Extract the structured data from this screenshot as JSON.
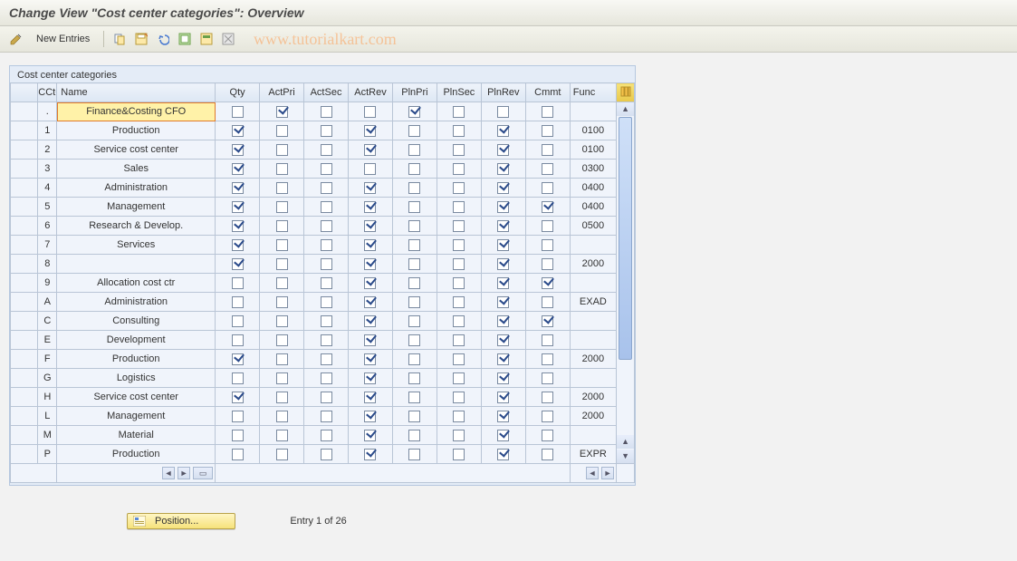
{
  "title": "Change View \"Cost center categories\": Overview",
  "watermark": "www.tutorialkart.com",
  "toolbar": {
    "new_entries_label": "New Entries",
    "icons": [
      "edit-icon",
      "copy-icon",
      "save-icon",
      "undo-icon",
      "select-all-icon",
      "select-block-icon",
      "deselect-icon"
    ]
  },
  "group": {
    "title": "Cost center categories"
  },
  "columns": [
    "CCtC",
    "Name",
    "Qty",
    "ActPri",
    "ActSec",
    "ActRev",
    "PlnPri",
    "PlnSec",
    "PlnRev",
    "Cmmt",
    "Func"
  ],
  "rows": [
    {
      "cc": ".",
      "name": "Finance&Costing CFO",
      "qty": false,
      "actpri": true,
      "actsec": false,
      "actrev": false,
      "plnpri": true,
      "plnsec": false,
      "plnrev": false,
      "cmmt": false,
      "func": "",
      "focus": true
    },
    {
      "cc": "1",
      "name": "Production",
      "qty": true,
      "actpri": false,
      "actsec": false,
      "actrev": true,
      "plnpri": false,
      "plnsec": false,
      "plnrev": true,
      "cmmt": false,
      "func": "0100"
    },
    {
      "cc": "2",
      "name": "Service cost center",
      "qty": true,
      "actpri": false,
      "actsec": false,
      "actrev": true,
      "plnpri": false,
      "plnsec": false,
      "plnrev": true,
      "cmmt": false,
      "func": "0100"
    },
    {
      "cc": "3",
      "name": "Sales",
      "qty": true,
      "actpri": false,
      "actsec": false,
      "actrev": false,
      "plnpri": false,
      "plnsec": false,
      "plnrev": true,
      "cmmt": false,
      "func": "0300"
    },
    {
      "cc": "4",
      "name": "Administration",
      "qty": true,
      "actpri": false,
      "actsec": false,
      "actrev": true,
      "plnpri": false,
      "plnsec": false,
      "plnrev": true,
      "cmmt": false,
      "func": "0400"
    },
    {
      "cc": "5",
      "name": "Management",
      "qty": true,
      "actpri": false,
      "actsec": false,
      "actrev": true,
      "plnpri": false,
      "plnsec": false,
      "plnrev": true,
      "cmmt": true,
      "func": "0400"
    },
    {
      "cc": "6",
      "name": "Research & Develop.",
      "qty": true,
      "actpri": false,
      "actsec": false,
      "actrev": true,
      "plnpri": false,
      "plnsec": false,
      "plnrev": true,
      "cmmt": false,
      "func": "0500"
    },
    {
      "cc": "7",
      "name": "Services",
      "qty": true,
      "actpri": false,
      "actsec": false,
      "actrev": true,
      "plnpri": false,
      "plnsec": false,
      "plnrev": true,
      "cmmt": false,
      "func": ""
    },
    {
      "cc": "8",
      "name": "",
      "qty": true,
      "actpri": false,
      "actsec": false,
      "actrev": true,
      "plnpri": false,
      "plnsec": false,
      "plnrev": true,
      "cmmt": false,
      "func": "2000"
    },
    {
      "cc": "9",
      "name": "Allocation cost ctr",
      "qty": false,
      "actpri": false,
      "actsec": false,
      "actrev": true,
      "plnpri": false,
      "plnsec": false,
      "plnrev": true,
      "cmmt": true,
      "func": ""
    },
    {
      "cc": "A",
      "name": "Administration",
      "qty": false,
      "actpri": false,
      "actsec": false,
      "actrev": true,
      "plnpri": false,
      "plnsec": false,
      "plnrev": true,
      "cmmt": false,
      "func": "EXAD"
    },
    {
      "cc": "C",
      "name": "Consulting",
      "qty": false,
      "actpri": false,
      "actsec": false,
      "actrev": true,
      "plnpri": false,
      "plnsec": false,
      "plnrev": true,
      "cmmt": true,
      "func": ""
    },
    {
      "cc": "E",
      "name": "Development",
      "qty": false,
      "actpri": false,
      "actsec": false,
      "actrev": true,
      "plnpri": false,
      "plnsec": false,
      "plnrev": true,
      "cmmt": false,
      "func": ""
    },
    {
      "cc": "F",
      "name": "Production",
      "qty": true,
      "actpri": false,
      "actsec": false,
      "actrev": true,
      "plnpri": false,
      "plnsec": false,
      "plnrev": true,
      "cmmt": false,
      "func": "2000"
    },
    {
      "cc": "G",
      "name": "Logistics",
      "qty": false,
      "actpri": false,
      "actsec": false,
      "actrev": true,
      "plnpri": false,
      "plnsec": false,
      "plnrev": true,
      "cmmt": false,
      "func": ""
    },
    {
      "cc": "H",
      "name": "Service cost center",
      "qty": true,
      "actpri": false,
      "actsec": false,
      "actrev": true,
      "plnpri": false,
      "plnsec": false,
      "plnrev": true,
      "cmmt": false,
      "func": "2000"
    },
    {
      "cc": "L",
      "name": "Management",
      "qty": false,
      "actpri": false,
      "actsec": false,
      "actrev": true,
      "plnpri": false,
      "plnsec": false,
      "plnrev": true,
      "cmmt": false,
      "func": "2000"
    },
    {
      "cc": "M",
      "name": "Material",
      "qty": false,
      "actpri": false,
      "actsec": false,
      "actrev": true,
      "plnpri": false,
      "plnsec": false,
      "plnrev": true,
      "cmmt": false,
      "func": ""
    },
    {
      "cc": "P",
      "name": "Production",
      "qty": false,
      "actpri": false,
      "actsec": false,
      "actrev": true,
      "plnpri": false,
      "plnsec": false,
      "plnrev": true,
      "cmmt": false,
      "func": "EXPR"
    }
  ],
  "footer": {
    "position_label": "Position...",
    "entry_text": "Entry 1 of 26"
  },
  "style": {
    "accent": "#e4ecf7",
    "header_grad": [
      "#eef3fa",
      "#dde7f4"
    ],
    "focus_bg": "#fff2a8",
    "focus_border": "#e07a2a",
    "checkbox_check": "#2a4a8a",
    "position_btn_grad": [
      "#fff6c4",
      "#f6e27a"
    ],
    "watermark_color": "rgba(255,145,60,0.45)"
  }
}
